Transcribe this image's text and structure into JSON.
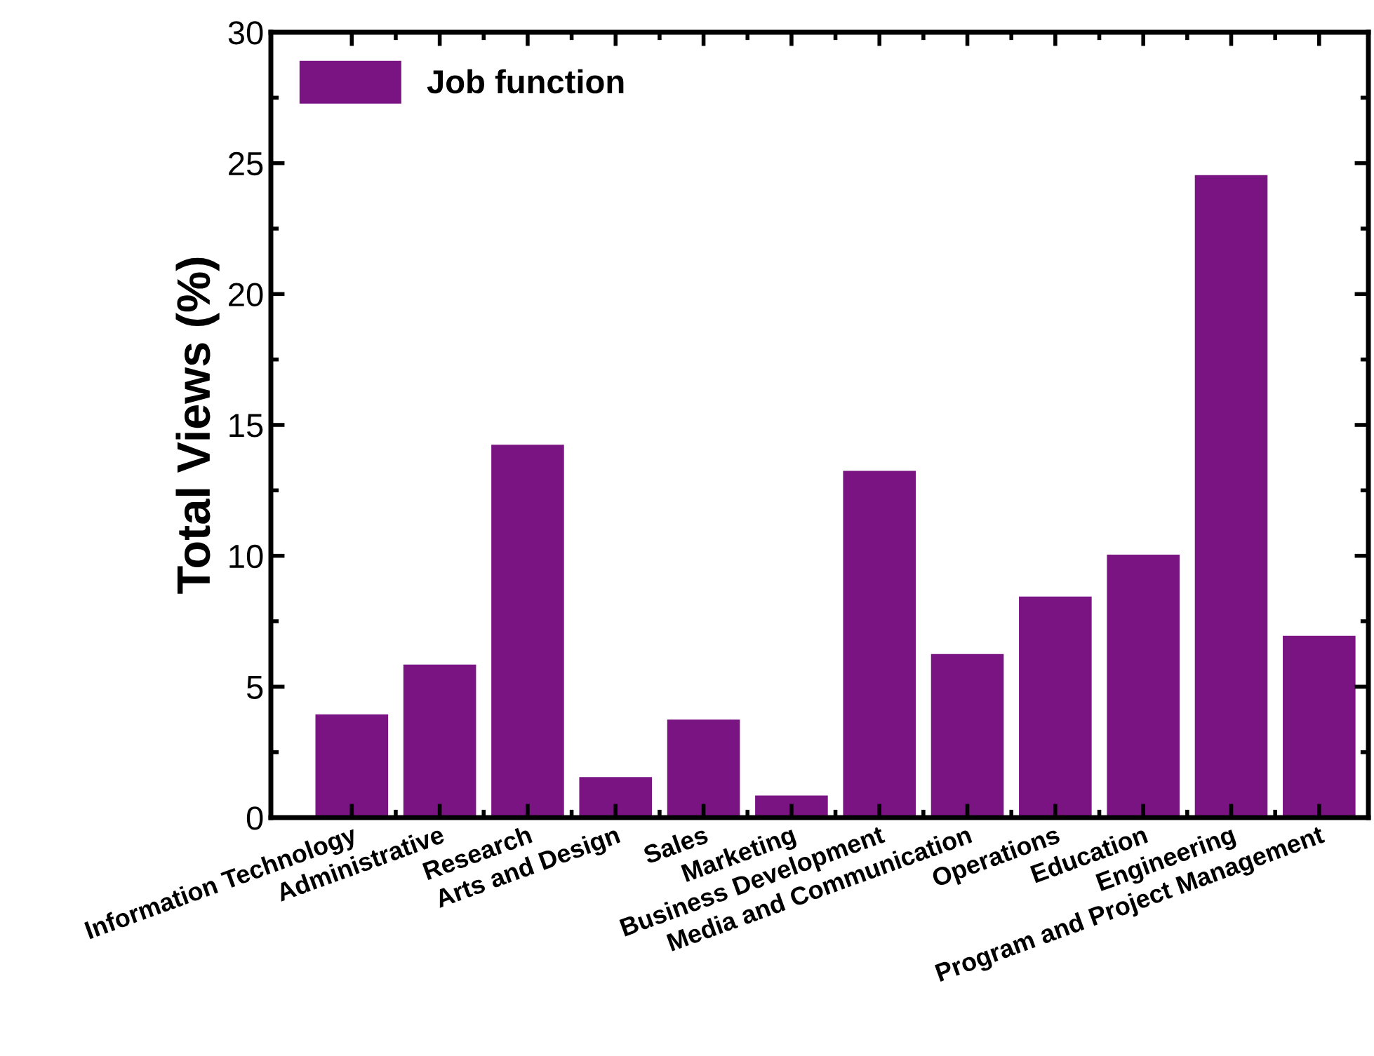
{
  "chart_data": {
    "type": "bar",
    "ylabel": "Total Views (%)",
    "categories": [
      "Information Technology",
      "Administrative",
      "Research",
      "Arts and Design",
      "Sales",
      "Marketing",
      "Business Development",
      "Media and Communication",
      "Operations",
      "Education",
      "Engineering",
      "Program and Project Management"
    ],
    "series": [
      {
        "name": "Job function",
        "color": "#7a1482",
        "values": [
          3.9,
          5.8,
          14.2,
          1.5,
          3.7,
          0.8,
          13.2,
          6.2,
          8.4,
          10.0,
          24.5,
          6.9
        ]
      }
    ],
    "ylim": [
      0,
      30
    ],
    "yticks": [
      0,
      5,
      10,
      15,
      20,
      25,
      30
    ],
    "grid": false,
    "legend": "top left"
  }
}
